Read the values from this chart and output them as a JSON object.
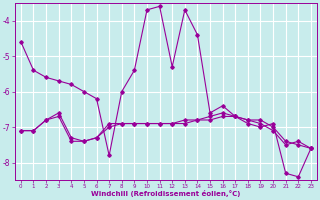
{
  "xlabel": "Windchill (Refroidissement éolien,°C)",
  "background_color": "#c8ecec",
  "line_color": "#990099",
  "grid_color": "#ffffff",
  "ylim": [
    -8.5,
    -3.5
  ],
  "xlim": [
    -0.5,
    23.5
  ],
  "yticks": [
    -8,
    -7,
    -6,
    -5,
    -4
  ],
  "xticks": [
    0,
    1,
    2,
    3,
    4,
    5,
    6,
    7,
    8,
    9,
    10,
    11,
    12,
    13,
    14,
    15,
    16,
    17,
    18,
    19,
    20,
    21,
    22,
    23
  ],
  "series1": {
    "x": [
      0,
      1,
      2,
      3,
      4,
      5,
      6,
      7,
      8,
      9,
      10,
      11,
      12,
      13,
      14,
      15,
      16,
      17,
      18,
      19,
      20,
      21,
      22,
      23
    ],
    "y": [
      -4.6,
      -5.4,
      -5.6,
      -5.7,
      -5.8,
      -6.0,
      -6.2,
      -7.8,
      -6.0,
      -5.4,
      -3.7,
      -3.6,
      -5.3,
      -3.7,
      -4.4,
      -6.6,
      -6.4,
      -6.7,
      -6.9,
      -7.0,
      -6.9,
      -8.3,
      -8.4,
      -7.6
    ]
  },
  "series2": {
    "x": [
      0,
      1,
      2,
      3,
      4,
      5,
      6,
      7,
      8,
      9,
      10,
      11,
      12,
      13,
      14,
      15,
      16,
      17,
      18,
      19,
      20,
      21,
      22,
      23
    ],
    "y": [
      -7.1,
      -7.1,
      -6.8,
      -6.7,
      -7.4,
      -7.4,
      -7.3,
      -7.0,
      -6.9,
      -6.9,
      -6.9,
      -6.9,
      -6.9,
      -6.9,
      -6.8,
      -6.8,
      -6.7,
      -6.7,
      -6.8,
      -6.8,
      -7.0,
      -7.4,
      -7.5,
      -7.6
    ]
  },
  "series3": {
    "x": [
      0,
      1,
      2,
      3,
      4,
      5,
      6,
      7,
      8,
      9,
      10,
      11,
      12,
      13,
      14,
      15,
      16,
      17,
      18,
      19,
      20,
      21,
      22,
      23
    ],
    "y": [
      -7.1,
      -7.1,
      -6.8,
      -6.6,
      -7.3,
      -7.4,
      -7.3,
      -6.9,
      -6.9,
      -6.9,
      -6.9,
      -6.9,
      -6.9,
      -6.8,
      -6.8,
      -6.7,
      -6.6,
      -6.7,
      -6.8,
      -6.9,
      -7.1,
      -7.5,
      -7.4,
      -7.6
    ]
  }
}
